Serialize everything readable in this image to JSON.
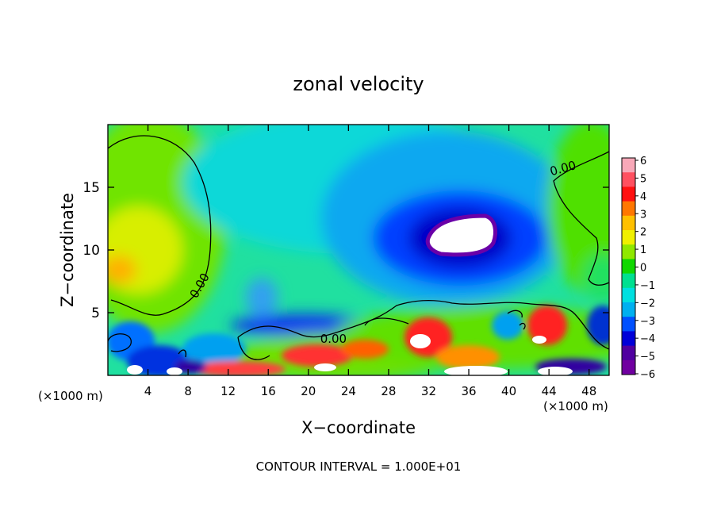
{
  "chart_data": {
    "type": "heatmap",
    "title": "zonal velocity",
    "xlabel": "X−coordinate",
    "ylabel": "Z−coordinate",
    "x_unit_left": "(×1000 m)",
    "x_unit_right": "(×1000 m)",
    "xlim": [
      0,
      50
    ],
    "ylim": [
      0,
      20
    ],
    "x_ticks": [
      4,
      8,
      12,
      16,
      20,
      24,
      28,
      32,
      36,
      40,
      44,
      48
    ],
    "y_ticks": [
      5,
      10,
      15
    ],
    "colorbar": {
      "range": [
        -6,
        6
      ],
      "tick_labels": [
        "6",
        "5",
        "4",
        "3",
        "2",
        "1",
        "0",
        "−1",
        "−2",
        "−3",
        "−4",
        "−5",
        "−6"
      ],
      "colors": [
        "#f8a8b8",
        "#ff5060",
        "#ff1010",
        "#ff7700",
        "#ffc000",
        "#f0f000",
        "#90e800",
        "#10d800",
        "#00e090",
        "#00e0e0",
        "#00b0f0",
        "#0050ff",
        "#0000d8",
        "#5000a0",
        "#7000a0"
      ]
    },
    "contour_labels": [
      {
        "text": "0.00",
        "x": 9.5,
        "z": 7.0,
        "rotate": -60
      },
      {
        "text": "0.00",
        "x": 22.5,
        "z": 2.6,
        "rotate": 0
      },
      {
        "text": "0.00",
        "x": 45.5,
        "z": 16.2,
        "rotate": -15
      }
    ],
    "footer": "CONTOUR INTERVAL = 1.000E+01"
  }
}
